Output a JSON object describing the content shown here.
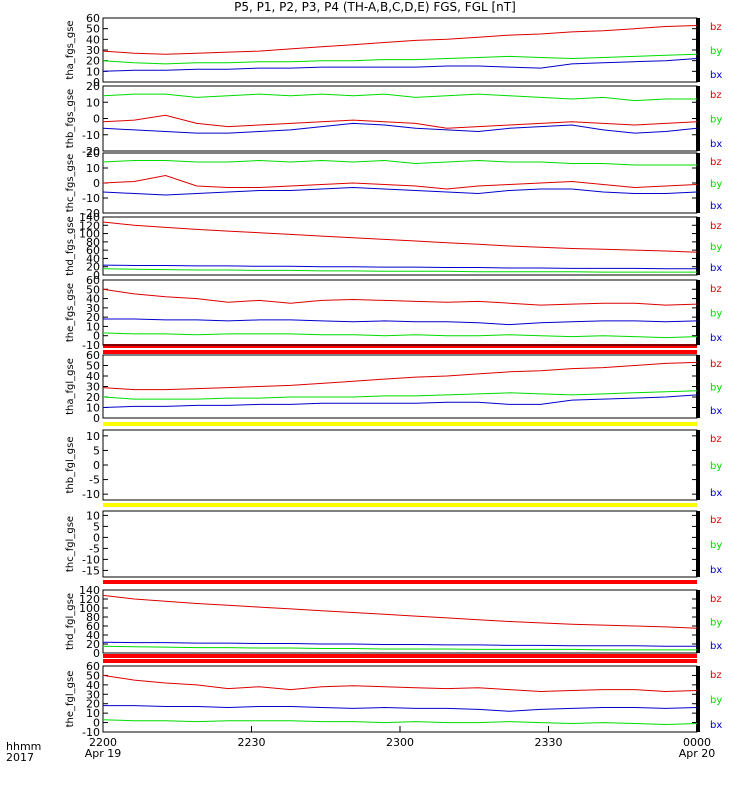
{
  "title": "P5, P1, P2, P3, P4 (TH-A,B,C,D,E) FGS, FGL [nT]",
  "time_axis": {
    "corner_label_top": "hhmm",
    "corner_label_bottom": "2017",
    "ticks": [
      {
        "label": "2200",
        "sub": "Apr 19"
      },
      {
        "label": "2230",
        "sub": ""
      },
      {
        "label": "2300",
        "sub": ""
      },
      {
        "label": "2330",
        "sub": ""
      },
      {
        "label": "0000",
        "sub": "Apr 20"
      }
    ]
  },
  "legend": {
    "bz": "bz",
    "by": "by",
    "bx": "bx"
  },
  "colors": {
    "bz": "#dd0000",
    "by": "#00dd00",
    "bx": "#0000cc",
    "red_bar": "#ff0000",
    "yellow_bar": "#ffff00"
  },
  "chart_data": [
    {
      "type": "line",
      "ylabel": "tha_fgs_gse",
      "ylim": [
        0,
        60
      ],
      "yticks": [
        0,
        10,
        20,
        30,
        40,
        50,
        60
      ],
      "series": [
        {
          "name": "bz",
          "color": "#dd0000",
          "values": [
            29,
            27,
            26,
            27,
            28,
            29,
            31,
            33,
            35,
            37,
            39,
            40,
            42,
            44,
            45,
            47,
            48,
            50,
            52,
            53
          ]
        },
        {
          "name": "by",
          "color": "#00dd00",
          "values": [
            20,
            18,
            17,
            18,
            18,
            19,
            19,
            20,
            20,
            21,
            21,
            22,
            23,
            24,
            23,
            22,
            23,
            24,
            25,
            26
          ]
        },
        {
          "name": "bx",
          "color": "#0000cc",
          "values": [
            10,
            11,
            11,
            12,
            12,
            13,
            13,
            14,
            14,
            14,
            14,
            15,
            15,
            14,
            13,
            17,
            18,
            19,
            20,
            22
          ]
        }
      ]
    },
    {
      "type": "line",
      "ylabel": "thb_fgs_gse",
      "ylim": [
        -20,
        20
      ],
      "yticks": [
        -20,
        -10,
        0,
        10,
        20
      ],
      "series": [
        {
          "name": "bz",
          "color": "#dd0000",
          "values": [
            -2,
            -1,
            2,
            -3,
            -5,
            -4,
            -3,
            -2,
            -1,
            -2,
            -3,
            -6,
            -5,
            -4,
            -3,
            -2,
            -3,
            -4,
            -3,
            -2
          ]
        },
        {
          "name": "by",
          "color": "#00dd00",
          "values": [
            14,
            15,
            15,
            13,
            14,
            15,
            14,
            15,
            14,
            15,
            13,
            14,
            15,
            14,
            13,
            12,
            13,
            11,
            12,
            12
          ]
        },
        {
          "name": "bx",
          "color": "#0000cc",
          "values": [
            -6,
            -7,
            -8,
            -9,
            -9,
            -8,
            -7,
            -5,
            -3,
            -4,
            -6,
            -7,
            -8,
            -6,
            -5,
            -4,
            -7,
            -9,
            -8,
            -6
          ]
        }
      ]
    },
    {
      "type": "line",
      "ylabel": "thc_fgs_gse",
      "ylim": [
        -20,
        20
      ],
      "yticks": [
        -20,
        -10,
        0,
        10,
        20
      ],
      "series": [
        {
          "name": "bz",
          "color": "#dd0000",
          "values": [
            0,
            1,
            5,
            -2,
            -3,
            -3,
            -2,
            -1,
            0,
            -1,
            -2,
            -4,
            -2,
            -1,
            0,
            1,
            -1,
            -3,
            -2,
            -1
          ]
        },
        {
          "name": "by",
          "color": "#00dd00",
          "values": [
            14,
            15,
            15,
            14,
            14,
            15,
            14,
            15,
            14,
            15,
            13,
            14,
            15,
            14,
            14,
            13,
            13,
            12,
            12,
            12
          ]
        },
        {
          "name": "bx",
          "color": "#0000cc",
          "values": [
            -6,
            -7,
            -8,
            -7,
            -6,
            -5,
            -5,
            -4,
            -3,
            -4,
            -5,
            -6,
            -7,
            -5,
            -4,
            -4,
            -6,
            -7,
            -7,
            -6
          ]
        }
      ]
    },
    {
      "type": "line",
      "ylabel": "thd_fgs_gse",
      "ylim": [
        0,
        140
      ],
      "yticks": [
        0,
        20,
        40,
        60,
        80,
        100,
        120,
        140
      ],
      "series": [
        {
          "name": "bz",
          "color": "#dd0000",
          "values": [
            128,
            120,
            115,
            110,
            106,
            102,
            98,
            94,
            90,
            86,
            82,
            78,
            74,
            70,
            67,
            64,
            62,
            60,
            58,
            55
          ]
        },
        {
          "name": "by",
          "color": "#00dd00",
          "values": [
            15,
            14,
            13,
            12,
            12,
            11,
            11,
            10,
            10,
            9,
            9,
            9,
            8,
            8,
            8,
            8,
            7,
            7,
            7,
            7
          ]
        },
        {
          "name": "bx",
          "color": "#0000cc",
          "values": [
            24,
            23,
            23,
            22,
            22,
            21,
            21,
            20,
            20,
            19,
            19,
            18,
            18,
            17,
            17,
            16,
            16,
            16,
            15,
            15
          ]
        }
      ]
    },
    {
      "type": "line",
      "ylabel": "the_fgs_gse",
      "ylim": [
        -10,
        60
      ],
      "yticks": [
        -10,
        0,
        10,
        20,
        30,
        40,
        50,
        60
      ],
      "series": [
        {
          "name": "bz",
          "color": "#dd0000",
          "values": [
            50,
            45,
            42,
            40,
            36,
            38,
            35,
            38,
            39,
            38,
            37,
            36,
            37,
            35,
            33,
            34,
            35,
            35,
            33,
            34
          ]
        },
        {
          "name": "by",
          "color": "#00dd00",
          "values": [
            3,
            2,
            2,
            1,
            2,
            2,
            2,
            1,
            1,
            0,
            1,
            0,
            0,
            1,
            0,
            -1,
            0,
            -1,
            -2,
            -1
          ]
        },
        {
          "name": "bx",
          "color": "#0000cc",
          "values": [
            18,
            18,
            17,
            17,
            16,
            17,
            17,
            16,
            15,
            16,
            15,
            15,
            14,
            12,
            14,
            15,
            16,
            16,
            15,
            16
          ]
        }
      ]
    },
    {
      "type": "line",
      "ylabel": "tha_fgl_gse",
      "ylim": [
        0,
        60
      ],
      "yticks": [
        0,
        10,
        20,
        30,
        40,
        50,
        60
      ],
      "series": [
        {
          "name": "bz",
          "color": "#dd0000",
          "values": [
            29,
            27,
            27,
            28,
            29,
            30,
            31,
            33,
            35,
            37,
            39,
            40,
            42,
            44,
            45,
            47,
            48,
            50,
            52,
            53
          ]
        },
        {
          "name": "by",
          "color": "#00dd00",
          "values": [
            20,
            18,
            18,
            18,
            19,
            19,
            20,
            20,
            20,
            21,
            21,
            22,
            23,
            24,
            23,
            22,
            23,
            24,
            25,
            26
          ]
        },
        {
          "name": "bx",
          "color": "#0000cc",
          "values": [
            10,
            11,
            11,
            12,
            12,
            13,
            13,
            14,
            14,
            14,
            14,
            15,
            15,
            13,
            13,
            17,
            18,
            19,
            20,
            22
          ]
        }
      ]
    },
    {
      "type": "line",
      "ylabel": "thb_fgl_gse",
      "ylim": [
        -12,
        12
      ],
      "yticks": [
        -10,
        -5,
        0,
        5,
        10
      ],
      "series": [
        {
          "name": "bz",
          "values": []
        },
        {
          "name": "by",
          "values": []
        },
        {
          "name": "bx",
          "values": []
        }
      ]
    },
    {
      "type": "line",
      "ylabel": "thc_fgl_gse",
      "ylim": [
        -18,
        12
      ],
      "yticks": [
        -15,
        -10,
        -5,
        0,
        5,
        10
      ],
      "series": [
        {
          "name": "bz",
          "values": []
        },
        {
          "name": "by",
          "values": []
        },
        {
          "name": "bx",
          "values": []
        }
      ]
    },
    {
      "type": "line",
      "ylabel": "thd_fgl_gse",
      "ylim": [
        0,
        140
      ],
      "yticks": [
        0,
        20,
        40,
        60,
        80,
        100,
        120,
        140
      ],
      "series": [
        {
          "name": "bz",
          "color": "#dd0000",
          "values": [
            128,
            120,
            115,
            110,
            106,
            102,
            98,
            94,
            90,
            86,
            82,
            78,
            74,
            70,
            67,
            64,
            62,
            60,
            58,
            55
          ]
        },
        {
          "name": "by",
          "color": "#00dd00",
          "values": [
            15,
            14,
            13,
            12,
            12,
            11,
            11,
            10,
            10,
            9,
            9,
            9,
            8,
            8,
            8,
            8,
            7,
            7,
            7,
            7
          ]
        },
        {
          "name": "bx",
          "color": "#0000cc",
          "values": [
            24,
            23,
            23,
            22,
            22,
            21,
            21,
            20,
            20,
            19,
            19,
            18,
            18,
            17,
            17,
            16,
            16,
            16,
            15,
            15
          ]
        }
      ]
    },
    {
      "type": "line",
      "ylabel": "the_fgl_gse",
      "ylim": [
        -10,
        60
      ],
      "yticks": [
        -10,
        0,
        10,
        20,
        30,
        40,
        50,
        60
      ],
      "series": [
        {
          "name": "bz",
          "color": "#dd0000",
          "values": [
            50,
            45,
            42,
            40,
            36,
            38,
            35,
            38,
            39,
            38,
            37,
            36,
            37,
            35,
            33,
            34,
            35,
            35,
            33,
            34
          ]
        },
        {
          "name": "by",
          "color": "#00dd00",
          "values": [
            3,
            2,
            2,
            1,
            2,
            2,
            2,
            1,
            1,
            0,
            1,
            0,
            0,
            1,
            0,
            -1,
            0,
            -1,
            -2,
            -1
          ]
        },
        {
          "name": "bx",
          "color": "#0000cc",
          "values": [
            18,
            18,
            17,
            17,
            16,
            17,
            17,
            16,
            15,
            16,
            15,
            15,
            14,
            12,
            14,
            15,
            16,
            16,
            15,
            16
          ]
        }
      ]
    }
  ]
}
